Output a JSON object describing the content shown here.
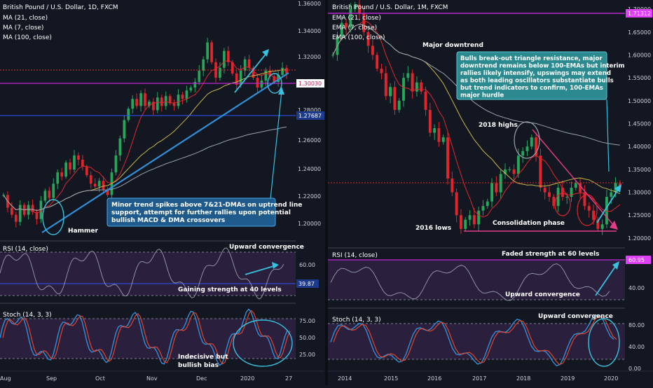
{
  "left": {
    "title": "British Pound / U.S. Dollar, 1D, FXCM",
    "legend": [
      "MA (21, close)",
      "MA (7, close)",
      "MA (100, close)"
    ],
    "price_ticks": [
      "1.36000",
      "1.34000",
      "1.32000",
      "1.30000",
      "1.28000",
      "1.26000",
      "1.24000",
      "1.22000",
      "1.20000"
    ],
    "price_tags": [
      {
        "text": "1.30030",
        "bg": "#ffffff",
        "fg": "#c2185b"
      },
      {
        "text": "1.27687",
        "bg": "#1e3a8a",
        "fg": "#ffffff"
      }
    ],
    "annotations": {
      "hammer": "Hammer",
      "box": "Minor trend spikes above 7&21-DMAs on uptrend line support, attempt for further rallies upon potential bullish MACD & DMA crossovers"
    },
    "rsi": {
      "title": "RSI (14, close)",
      "ticks": [
        "60.00"
      ],
      "tag": "39.87",
      "upper_note": "Upward convergence",
      "lower_note": "Gaining strength at 40 levels"
    },
    "stoch": {
      "title": "Stoch (14, 3, 3)",
      "ticks": [
        "75.00",
        "50.00",
        "25.00"
      ],
      "note": "Indecisive but bullish bias"
    },
    "x_ticks": [
      "Aug",
      "Sep",
      "Oct",
      "Nov",
      "Dec",
      "2020",
      "27"
    ]
  },
  "right": {
    "title": "British Pound / U.S. Dollar, 1M, FXCM",
    "legend": [
      "EMA (21, close)",
      "EMA (7, close)",
      "EMA (100, close)"
    ],
    "price_ticks": [
      "1.70000",
      "1.65000",
      "1.60000",
      "1.55000",
      "1.50000",
      "1.45000",
      "1.40000",
      "1.35000",
      "1.30000",
      "1.25000",
      "1.20000"
    ],
    "price_tag": {
      "text": "1.71312",
      "bg": "#e040fb",
      "fg": "#ffffff"
    },
    "annotations": {
      "major_downtrend": "Major downtrend",
      "highs_2018": "2018 highs",
      "lows_2016": "2016 lows",
      "consolidation": "Consolidation phase",
      "box": "Bulls break-out triangle resistance, major downtrend remains below 100-EMAs but interim rallies likely intensify, upswings may extend as both leading oscillators substantiate bulls but trend indicators to confirm, 100-EMAs major hurdle"
    },
    "rsi": {
      "title": "RSI (14, close)",
      "ticks": [
        "40.00"
      ],
      "tag": "60.95",
      "upper_note": "Faded strength at 60 levels",
      "lower_note": "Upward convergence"
    },
    "stoch": {
      "title": "Stoch (14, 3, 3)",
      "ticks": [
        "80.00",
        "40.00",
        "0.00"
      ],
      "note": "Upward convergence"
    },
    "x_ticks": [
      "2014",
      "2015",
      "2016",
      "2017",
      "2018",
      "2019",
      "2020"
    ]
  },
  "colors": {
    "bg": "#131722",
    "bull": "#26a65b",
    "bear": "#e0262d",
    "trendline": "#2f8fd8",
    "annotation_box": "#1e5a8c",
    "annotation_box_right": "#2a8a90",
    "oscillator_fill": "#2a1f3d",
    "level_line": "#c026d3"
  },
  "chart_data": [
    {
      "type": "candlestick",
      "title": "British Pound / U.S. Dollar, 1D, FXCM",
      "ylim": [
        1.19,
        1.36
      ],
      "x_labels": [
        "Aug",
        "Sep",
        "Oct",
        "Nov",
        "Dec",
        "2020",
        "27"
      ],
      "series": [
        {
          "name": "MA (21, close)"
        },
        {
          "name": "MA (7, close)"
        },
        {
          "name": "MA (100, close)"
        }
      ],
      "key_levels": [
        1.3003,
        1.27687
      ],
      "close_path": [
        1.222,
        1.213,
        1.208,
        1.203,
        1.215,
        1.208,
        1.215,
        1.21,
        1.205,
        1.218,
        1.225,
        1.22,
        1.23,
        1.238,
        1.235,
        1.245,
        1.24,
        1.25,
        1.247,
        1.242,
        1.236,
        1.23,
        1.228,
        1.232,
        1.226,
        1.222,
        1.238,
        1.25,
        1.262,
        1.275,
        1.283,
        1.29,
        1.285,
        1.294,
        1.285,
        1.288,
        1.282,
        1.291,
        1.285,
        1.292,
        1.287,
        1.285,
        1.293,
        1.29,
        1.296,
        1.298,
        1.302,
        1.31,
        1.318,
        1.33,
        1.316,
        1.305,
        1.312,
        1.324,
        1.316,
        1.308,
        1.3,
        1.31,
        1.318,
        1.312,
        1.305,
        1.298,
        1.303,
        1.31,
        1.306,
        1.302,
        1.307,
        1.312,
        1.308
      ]
    },
    {
      "type": "candlestick",
      "title": "British Pound / U.S. Dollar, 1M, FXCM",
      "ylim": [
        1.18,
        1.72
      ],
      "x_labels": [
        "2014",
        "2015",
        "2016",
        "2017",
        "2018",
        "2019",
        "2020"
      ],
      "series": [
        {
          "name": "EMA (21, close)"
        },
        {
          "name": "EMA (7, close)"
        },
        {
          "name": "EMA (100, close)"
        }
      ],
      "key_levels": [
        1.71312
      ],
      "close_path": [
        1.6,
        1.64,
        1.67,
        1.66,
        1.7,
        1.71,
        1.69,
        1.65,
        1.62,
        1.6,
        1.57,
        1.56,
        1.51,
        1.53,
        1.48,
        1.5,
        1.55,
        1.56,
        1.52,
        1.54,
        1.52,
        1.48,
        1.43,
        1.44,
        1.41,
        1.42,
        1.33,
        1.3,
        1.25,
        1.22,
        1.24,
        1.25,
        1.23,
        1.26,
        1.27,
        1.28,
        1.32,
        1.3,
        1.34,
        1.35,
        1.35,
        1.34,
        1.38,
        1.39,
        1.4,
        1.42,
        1.38,
        1.31,
        1.3,
        1.29,
        1.27,
        1.31,
        1.29,
        1.29,
        1.31,
        1.32,
        1.3,
        1.27,
        1.26,
        1.24,
        1.22,
        1.23,
        1.29,
        1.3,
        1.32,
        1.31
      ]
    }
  ]
}
